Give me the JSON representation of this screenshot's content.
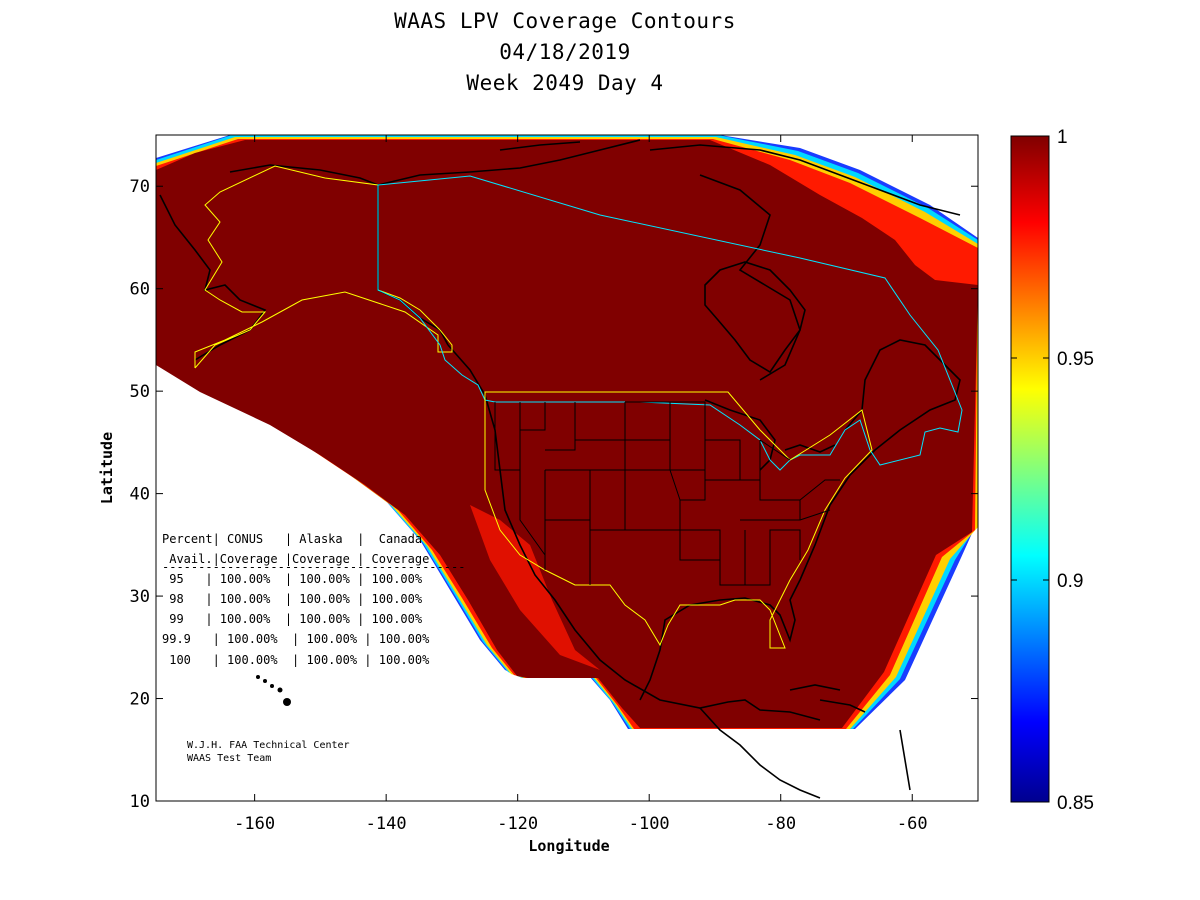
{
  "title": {
    "line1": "WAAS LPV Coverage Contours",
    "line2": "04/18/2019",
    "line3": "Week 2049 Day 4"
  },
  "axes": {
    "xlabel": "Longitude",
    "ylabel": "Latitude",
    "xlim": [
      -175,
      -50
    ],
    "ylim": [
      10,
      75
    ],
    "xticks": [
      -160,
      -140,
      -120,
      -100,
      -80,
      -60
    ],
    "yticks": [
      10,
      20,
      30,
      40,
      50,
      60,
      70
    ]
  },
  "colorbar": {
    "range": [
      0.85,
      1
    ],
    "ticks": [
      {
        "value": 1,
        "label": "1"
      },
      {
        "value": 0.95,
        "label": "0.95"
      },
      {
        "value": 0.9,
        "label": "0.9"
      },
      {
        "value": 0.85,
        "label": "0.85"
      }
    ],
    "colormap": "jet",
    "fill_color": "#800000"
  },
  "table": {
    "header1": "Percent| CONUS   | Alaska  |  Canada",
    "header2": " Avail.|Coverage |Coverage | Coverage",
    "rule": "------------------------------------------",
    "rows": [
      " 95   | 100.00%  | 100.00% | 100.00%",
      " 98   | 100.00%  | 100.00% | 100.00%",
      " 99   | 100.00%  | 100.00% | 100.00%",
      "99.9   | 100.00%  | 100.00% | 100.00%",
      " 100   | 100.00%  | 100.00% | 100.00%"
    ]
  },
  "credit": {
    "line1": "W.J.H. FAA Technical Center",
    "line2": "WAAS Test Team"
  },
  "chart_data": {
    "type": "heatmap",
    "title": "WAAS LPV Coverage Contours 04/18/2019 Week 2049 Day 4",
    "xlabel": "Longitude",
    "ylabel": "Latitude",
    "xlim": [
      -175,
      -50
    ],
    "ylim": [
      10,
      75
    ],
    "clim": [
      0.85,
      1
    ],
    "service_regions": [
      "CONUS",
      "Alaska",
      "Canada"
    ],
    "coverage_percent": [
      {
        "availability": "95",
        "CONUS": "100.00%",
        "Alaska": "100.00%",
        "Canada": "100.00%"
      },
      {
        "availability": "98",
        "CONUS": "100.00%",
        "Alaska": "100.00%",
        "Canada": "100.00%"
      },
      {
        "availability": "99",
        "CONUS": "100.00%",
        "Alaska": "100.00%",
        "Canada": "100.00%"
      },
      {
        "availability": "99.9",
        "CONUS": "100.00%",
        "Alaska": "100.00%",
        "Canada": "100.00%"
      },
      {
        "availability": "100",
        "CONUS": "100.00%",
        "Alaska": "100.00%",
        "Canada": "100.00%"
      }
    ]
  }
}
